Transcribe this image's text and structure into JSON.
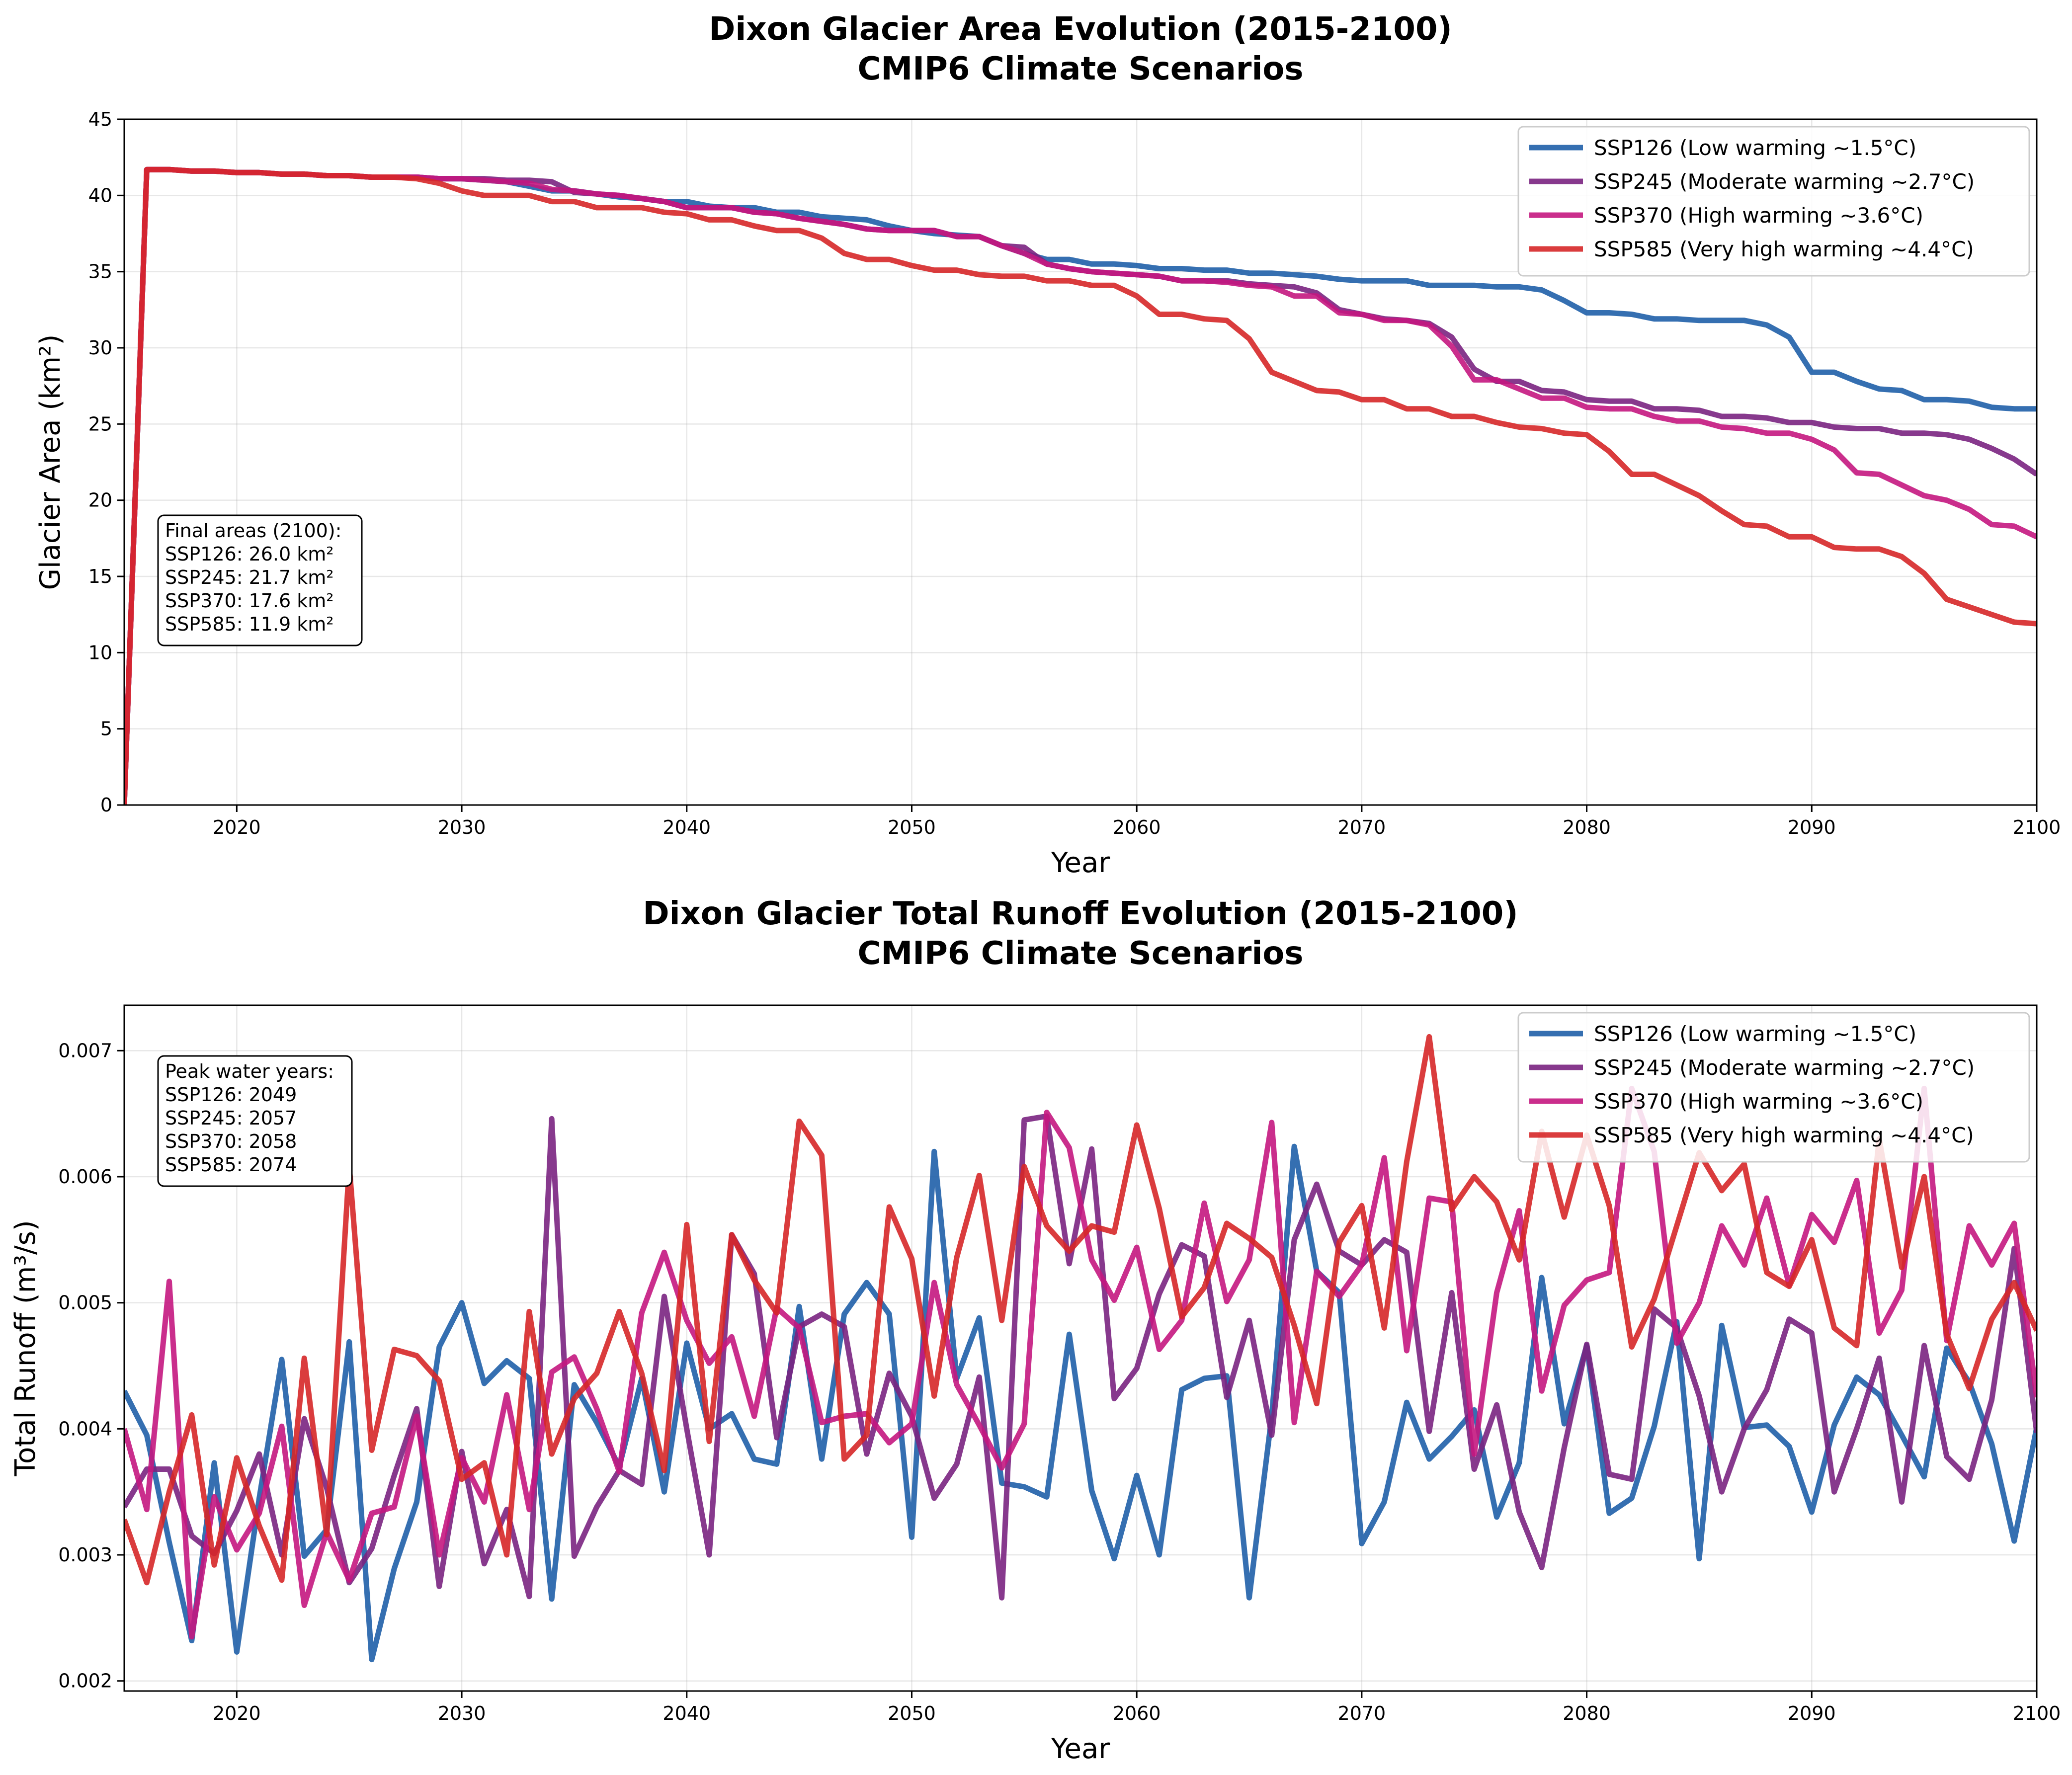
{
  "chart_data": [
    {
      "type": "line",
      "title": "Dixon Glacier Area Evolution (2015-2100)\nCMIP6 Climate Scenarios",
      "xlabel": "Year",
      "ylabel": "Glacier Area (km²)",
      "xlim": [
        2015,
        2100
      ],
      "ylim": [
        0,
        45
      ],
      "xticks": [
        2020,
        2030,
        2040,
        2050,
        2060,
        2070,
        2080,
        2090,
        2100
      ],
      "yticks": [
        0,
        5,
        10,
        15,
        20,
        25,
        30,
        35,
        40,
        45
      ],
      "grid": true,
      "legend_position": "upper right",
      "annotation": {
        "position": "left",
        "lines": [
          "Final areas (2100):",
          "SSP126: 26.0 km²",
          "SSP245: 21.7 km²",
          "SSP370: 17.6 km²",
          "SSP585: 11.9 km²"
        ]
      },
      "x": [
        2015,
        2016,
        2017,
        2018,
        2019,
        2020,
        2021,
        2022,
        2023,
        2024,
        2025,
        2026,
        2027,
        2028,
        2029,
        2030,
        2031,
        2032,
        2033,
        2034,
        2035,
        2036,
        2037,
        2038,
        2039,
        2040,
        2041,
        2042,
        2043,
        2044,
        2045,
        2046,
        2047,
        2048,
        2049,
        2050,
        2051,
        2052,
        2053,
        2054,
        2055,
        2056,
        2057,
        2058,
        2059,
        2060,
        2061,
        2062,
        2063,
        2064,
        2065,
        2066,
        2067,
        2068,
        2069,
        2070,
        2071,
        2072,
        2073,
        2074,
        2075,
        2076,
        2077,
        2078,
        2079,
        2080,
        2081,
        2082,
        2083,
        2084,
        2085,
        2086,
        2087,
        2088,
        2089,
        2090,
        2091,
        2092,
        2093,
        2094,
        2095,
        2096,
        2097,
        2098,
        2099,
        2100
      ],
      "series": [
        {
          "name": "SSP126 (Low warming ~1.5°C)",
          "color": "#1f5fa8",
          "values": [
            0,
            41.7,
            41.7,
            41.6,
            41.6,
            41.5,
            41.5,
            41.4,
            41.4,
            41.3,
            41.3,
            41.2,
            41.2,
            41.2,
            41.1,
            41.1,
            41.0,
            40.9,
            40.6,
            40.3,
            40.3,
            40.1,
            39.9,
            39.8,
            39.6,
            39.6,
            39.3,
            39.2,
            39.2,
            38.9,
            38.9,
            38.6,
            38.5,
            38.4,
            38.0,
            37.7,
            37.5,
            37.4,
            37.3,
            36.7,
            36.2,
            35.8,
            35.8,
            35.5,
            35.5,
            35.4,
            35.2,
            35.2,
            35.1,
            35.1,
            34.9,
            34.9,
            34.8,
            34.7,
            34.5,
            34.4,
            34.4,
            34.4,
            34.1,
            34.1,
            34.1,
            34.0,
            34.0,
            33.8,
            33.1,
            32.3,
            32.3,
            32.2,
            31.9,
            31.9,
            31.8,
            31.8,
            31.8,
            31.5,
            30.7,
            28.4,
            28.4,
            27.8,
            27.3,
            27.2,
            26.6,
            26.6,
            26.5,
            26.1,
            26.0,
            26.0
          ]
        },
        {
          "name": "SSP245 (Moderate warming ~2.7°C)",
          "color": "#7a2481",
          "values": [
            0,
            41.7,
            41.7,
            41.6,
            41.6,
            41.5,
            41.5,
            41.4,
            41.4,
            41.3,
            41.3,
            41.2,
            41.2,
            41.2,
            41.1,
            41.1,
            41.1,
            41.0,
            41.0,
            40.9,
            40.2,
            40.1,
            40.0,
            39.8,
            39.6,
            39.2,
            39.2,
            39.2,
            38.9,
            38.8,
            38.5,
            38.3,
            38.1,
            37.8,
            37.7,
            37.7,
            37.7,
            37.3,
            37.3,
            36.7,
            36.6,
            35.5,
            35.2,
            35.0,
            34.9,
            34.8,
            34.7,
            34.4,
            34.4,
            34.4,
            34.2,
            34.1,
            34.0,
            33.6,
            32.5,
            32.2,
            31.9,
            31.8,
            31.6,
            30.7,
            28.6,
            27.8,
            27.8,
            27.2,
            27.1,
            26.6,
            26.5,
            26.5,
            26.0,
            26.0,
            25.9,
            25.5,
            25.5,
            25.4,
            25.1,
            25.1,
            24.8,
            24.7,
            24.7,
            24.4,
            24.4,
            24.3,
            24.0,
            23.4,
            22.7,
            21.7
          ]
        },
        {
          "name": "SSP370 (High warming ~3.6°C)",
          "color": "#c4177f",
          "values": [
            0,
            41.7,
            41.7,
            41.6,
            41.6,
            41.5,
            41.5,
            41.4,
            41.4,
            41.3,
            41.3,
            41.2,
            41.2,
            41.2,
            41.1,
            41.1,
            41.0,
            40.9,
            40.8,
            40.4,
            40.3,
            40.1,
            40.0,
            39.8,
            39.6,
            39.2,
            39.2,
            39.2,
            38.9,
            38.8,
            38.5,
            38.3,
            38.1,
            37.8,
            37.7,
            37.7,
            37.7,
            37.3,
            37.3,
            36.7,
            36.2,
            35.5,
            35.2,
            35.0,
            34.9,
            34.8,
            34.7,
            34.4,
            34.4,
            34.3,
            34.1,
            34.0,
            33.4,
            33.4,
            32.3,
            32.2,
            31.8,
            31.8,
            31.5,
            30.1,
            27.9,
            27.9,
            27.3,
            26.7,
            26.7,
            26.1,
            26.0,
            26.0,
            25.5,
            25.2,
            25.2,
            24.8,
            24.7,
            24.4,
            24.4,
            24.0,
            23.3,
            21.8,
            21.7,
            21.0,
            20.3,
            20.0,
            19.4,
            18.4,
            18.3,
            17.6
          ]
        },
        {
          "name": "SSP585 (Very high warming ~4.4°C)",
          "color": "#d62728",
          "values": [
            0,
            41.7,
            41.7,
            41.6,
            41.6,
            41.5,
            41.5,
            41.4,
            41.4,
            41.3,
            41.3,
            41.2,
            41.2,
            41.1,
            40.8,
            40.3,
            40.0,
            40.0,
            40.0,
            39.6,
            39.6,
            39.2,
            39.2,
            39.2,
            38.9,
            38.8,
            38.4,
            38.4,
            38.0,
            37.7,
            37.7,
            37.2,
            36.2,
            35.8,
            35.8,
            35.4,
            35.1,
            35.1,
            34.8,
            34.7,
            34.7,
            34.4,
            34.4,
            34.1,
            34.1,
            33.4,
            32.2,
            32.2,
            31.9,
            31.8,
            30.6,
            28.4,
            27.8,
            27.2,
            27.1,
            26.6,
            26.6,
            26.0,
            26.0,
            25.5,
            25.5,
            25.1,
            24.8,
            24.7,
            24.4,
            24.3,
            23.2,
            21.7,
            21.7,
            21.0,
            20.3,
            19.3,
            18.4,
            18.3,
            17.6,
            17.6,
            16.9,
            16.8,
            16.8,
            16.3,
            15.2,
            13.5,
            13.0,
            12.5,
            12.0,
            11.9
          ]
        }
      ]
    },
    {
      "type": "line",
      "title": "Dixon Glacier Total Runoff Evolution (2015-2100)\nCMIP6 Climate Scenarios",
      "xlabel": "Year",
      "ylabel": "Total Runoff (m³/s)",
      "xlim": [
        2015,
        2100
      ],
      "ylim": [
        0.00192,
        0.00736
      ],
      "xticks": [
        2020,
        2030,
        2040,
        2050,
        2060,
        2070,
        2080,
        2090,
        2100
      ],
      "yticks": [
        0.002,
        0.003,
        0.004,
        0.005,
        0.006,
        0.007
      ],
      "ytick_labels": [
        "0.002",
        "0.003",
        "0.004",
        "0.005",
        "0.006",
        "0.007"
      ],
      "grid": true,
      "legend_position": "upper right",
      "annotation": {
        "position": "upper left",
        "lines": [
          "Peak water years:",
          "SSP126: 2049",
          "SSP245: 2057",
          "SSP370: 2058",
          "SSP585: 2074"
        ]
      },
      "x": [
        2015,
        2016,
        2017,
        2018,
        2019,
        2020,
        2021,
        2022,
        2023,
        2024,
        2025,
        2026,
        2027,
        2028,
        2029,
        2030,
        2031,
        2032,
        2033,
        2034,
        2035,
        2036,
        2037,
        2038,
        2039,
        2040,
        2041,
        2042,
        2043,
        2044,
        2045,
        2046,
        2047,
        2048,
        2049,
        2050,
        2051,
        2052,
        2053,
        2054,
        2055,
        2056,
        2057,
        2058,
        2059,
        2060,
        2061,
        2062,
        2063,
        2064,
        2065,
        2066,
        2067,
        2068,
        2069,
        2070,
        2071,
        2072,
        2073,
        2074,
        2075,
        2076,
        2077,
        2078,
        2079,
        2080,
        2081,
        2082,
        2083,
        2084,
        2085,
        2086,
        2087,
        2088,
        2089,
        2090,
        2091,
        2092,
        2093,
        2094,
        2095,
        2096,
        2097,
        2098,
        2099,
        2100
      ],
      "series": [
        {
          "name": "SSP126 (Low warming ~1.5°C)",
          "color": "#1f5fa8",
          "values": [
            0.0043,
            0.00395,
            0.0031,
            0.00232,
            0.00373,
            0.00223,
            0.00345,
            0.00455,
            0.00299,
            0.0032,
            0.00469,
            0.00217,
            0.00289,
            0.00342,
            0.00465,
            0.005,
            0.00436,
            0.00454,
            0.0044,
            0.00265,
            0.00435,
            0.00405,
            0.0037,
            0.0044,
            0.0035,
            0.00468,
            0.004,
            0.00412,
            0.00376,
            0.00372,
            0.00497,
            0.00376,
            0.00491,
            0.00516,
            0.00491,
            0.00314,
            0.0062,
            0.0044,
            0.00488,
            0.00357,
            0.00354,
            0.00346,
            0.00475,
            0.00351,
            0.00297,
            0.00363,
            0.003,
            0.00431,
            0.0044,
            0.00442,
            0.00266,
            0.0041,
            0.00624,
            0.00525,
            0.00508,
            0.00309,
            0.00342,
            0.00421,
            0.00376,
            0.00394,
            0.00415,
            0.0033,
            0.00373,
            0.0052,
            0.00404,
            0.00466,
            0.00333,
            0.00345,
            0.00402,
            0.00485,
            0.00297,
            0.00482,
            0.00401,
            0.00403,
            0.00386,
            0.00334,
            0.00403,
            0.00441,
            0.00427,
            0.00395,
            0.00362,
            0.00464,
            0.00437,
            0.00388,
            0.00311,
            0.00401
          ]
        },
        {
          "name": "SSP245 (Moderate warming ~2.7°C)",
          "color": "#7a2481",
          "values": [
            0.00338,
            0.00368,
            0.00368,
            0.00315,
            0.00301,
            0.00335,
            0.0038,
            0.003,
            0.00408,
            0.00353,
            0.00278,
            0.00305,
            0.00363,
            0.00416,
            0.00275,
            0.00382,
            0.00293,
            0.00336,
            0.00267,
            0.00646,
            0.00299,
            0.00338,
            0.00367,
            0.00356,
            0.00505,
            0.004,
            0.003,
            0.00554,
            0.00523,
            0.00393,
            0.00481,
            0.00491,
            0.00481,
            0.0038,
            0.00444,
            0.0041,
            0.00345,
            0.00372,
            0.00441,
            0.00266,
            0.00645,
            0.00648,
            0.00531,
            0.00622,
            0.00424,
            0.00448,
            0.00507,
            0.00546,
            0.00537,
            0.00425,
            0.00486,
            0.00395,
            0.0055,
            0.00594,
            0.00541,
            0.0053,
            0.0055,
            0.0054,
            0.00398,
            0.00508,
            0.00368,
            0.00419,
            0.00334,
            0.0029,
            0.00385,
            0.00467,
            0.00364,
            0.0036,
            0.00495,
            0.0048,
            0.00426,
            0.0035,
            0.004,
            0.00431,
            0.00487,
            0.00476,
            0.0035,
            0.004,
            0.00456,
            0.00342,
            0.00466,
            0.00378,
            0.0036,
            0.00423,
            0.00543,
            0.00397
          ]
        },
        {
          "name": "SSP370 (High warming ~3.6°C)",
          "color": "#c4177f",
          "values": [
            0.004,
            0.00336,
            0.00517,
            0.00235,
            0.00346,
            0.00304,
            0.00333,
            0.00402,
            0.0026,
            0.00318,
            0.0028,
            0.00333,
            0.00338,
            0.0041,
            0.003,
            0.00377,
            0.00342,
            0.00427,
            0.00336,
            0.00445,
            0.00457,
            0.00416,
            0.00366,
            0.00492,
            0.0054,
            0.00486,
            0.00452,
            0.00473,
            0.0041,
            0.00496,
            0.0048,
            0.00405,
            0.0041,
            0.00412,
            0.00389,
            0.00404,
            0.00516,
            0.00435,
            0.00403,
            0.00369,
            0.00404,
            0.00651,
            0.00623,
            0.00534,
            0.00502,
            0.00544,
            0.00463,
            0.00486,
            0.00579,
            0.00501,
            0.00534,
            0.00643,
            0.00405,
            0.00525,
            0.00505,
            0.0053,
            0.00615,
            0.00462,
            0.00583,
            0.0058,
            0.0038,
            0.00508,
            0.00573,
            0.0043,
            0.00498,
            0.00518,
            0.00524,
            0.0067,
            0.0062,
            0.00468,
            0.005,
            0.00561,
            0.0053,
            0.00583,
            0.00514,
            0.0057,
            0.00548,
            0.00597,
            0.00476,
            0.0051,
            0.0067,
            0.0047,
            0.00561,
            0.0053,
            0.00563,
            0.00425
          ]
        },
        {
          "name": "SSP585 (Very high warming ~4.4°C)",
          "color": "#d62728",
          "values": [
            0.00328,
            0.00278,
            0.0035,
            0.00411,
            0.00292,
            0.00377,
            0.00323,
            0.0028,
            0.00456,
            0.00316,
            0.00609,
            0.00383,
            0.00463,
            0.00458,
            0.00438,
            0.0036,
            0.00373,
            0.003,
            0.00493,
            0.0038,
            0.00424,
            0.00444,
            0.00493,
            0.00444,
            0.00367,
            0.00562,
            0.0039,
            0.00554,
            0.00518,
            0.00492,
            0.00644,
            0.00617,
            0.00376,
            0.00395,
            0.00576,
            0.00535,
            0.00426,
            0.00536,
            0.00601,
            0.00486,
            0.00608,
            0.00561,
            0.00541,
            0.00561,
            0.00556,
            0.00641,
            0.00575,
            0.00489,
            0.00512,
            0.00563,
            0.00551,
            0.00536,
            0.00482,
            0.0042,
            0.00548,
            0.00577,
            0.0048,
            0.00612,
            0.00711,
            0.00574,
            0.006,
            0.0058,
            0.00534,
            0.00636,
            0.00568,
            0.00633,
            0.00577,
            0.00465,
            0.00503,
            0.00561,
            0.00619,
            0.00589,
            0.0061,
            0.00524,
            0.00513,
            0.0055,
            0.0048,
            0.00466,
            0.0063,
            0.00528,
            0.006,
            0.00475,
            0.00432,
            0.00487,
            0.00516,
            0.00478
          ]
        }
      ]
    }
  ]
}
